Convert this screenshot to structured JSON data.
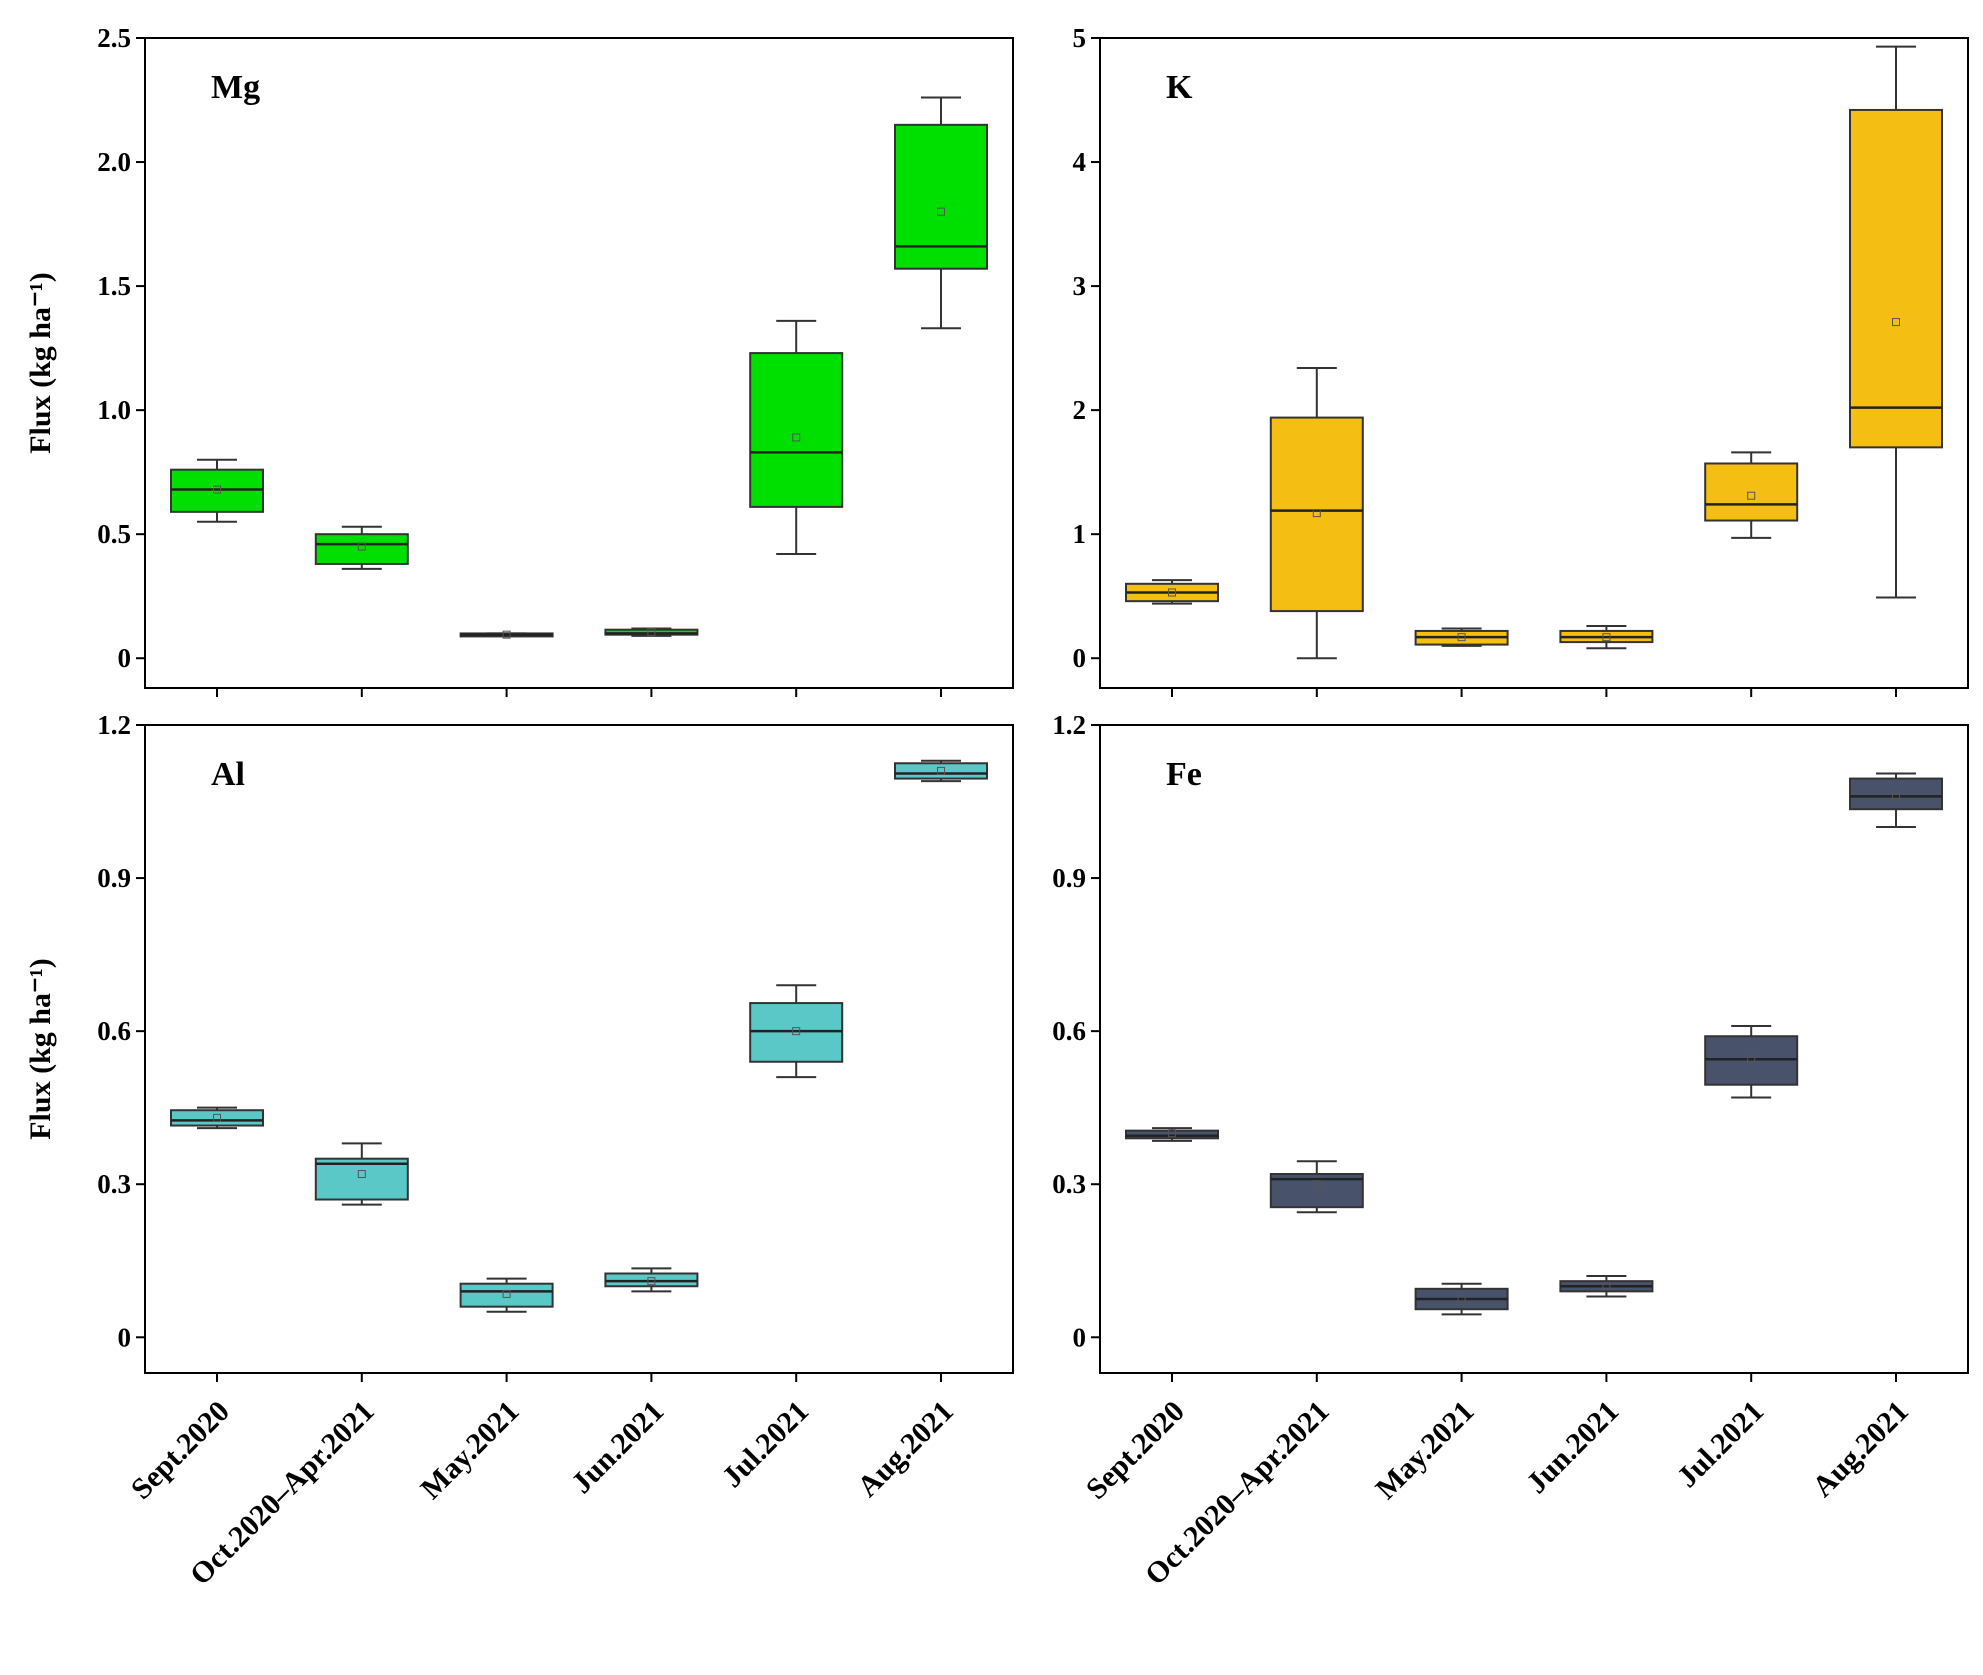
{
  "chart_data": [
    {
      "type": "box",
      "label": "Mg",
      "color": "#00e000",
      "ylabel": "Flux (kg ha⁻¹)",
      "ylim": [
        -0.12,
        2.5
      ],
      "yticks": [
        0,
        0.5,
        1.0,
        1.5,
        2.0,
        2.5
      ],
      "ytick_labels": [
        "0",
        "0.5",
        "1.0",
        "1.5",
        "2.0",
        "2.5"
      ],
      "categories": [
        "Sept.2020",
        "Oct.2020–Apr.2021",
        "May.2021",
        "Jun.2021",
        "Jul.2021",
        "Aug.2021"
      ],
      "boxes": [
        {
          "min": 0.55,
          "q1": 0.59,
          "median": 0.68,
          "q3": 0.76,
          "max": 0.8,
          "mean": 0.68
        },
        {
          "min": 0.36,
          "q1": 0.38,
          "median": 0.46,
          "q3": 0.5,
          "max": 0.53,
          "mean": 0.45
        },
        {
          "min": 0.09,
          "q1": 0.09,
          "median": 0.095,
          "q3": 0.1,
          "max": 0.1,
          "mean": 0.095
        },
        {
          "min": 0.09,
          "q1": 0.095,
          "median": 0.1,
          "q3": 0.115,
          "max": 0.12,
          "mean": 0.105
        },
        {
          "min": 0.42,
          "q1": 0.61,
          "median": 0.83,
          "q3": 1.23,
          "max": 1.36,
          "mean": 0.89
        },
        {
          "min": 1.33,
          "q1": 1.57,
          "median": 1.66,
          "q3": 2.15,
          "max": 2.26,
          "mean": 1.8
        }
      ]
    },
    {
      "type": "box",
      "label": "K",
      "color": "#f5be12",
      "ylabel": "",
      "ylim": [
        -0.24,
        5
      ],
      "yticks": [
        0,
        1,
        2,
        3,
        4,
        5
      ],
      "ytick_labels": [
        "0",
        "1",
        "2",
        "3",
        "4",
        "5"
      ],
      "categories": [
        "Sept.2020",
        "Oct.2020–Apr.2021",
        "May.2021",
        "Jun.2021",
        "Jul.2021",
        "Aug.2021"
      ],
      "boxes": [
        {
          "min": 0.44,
          "q1": 0.46,
          "median": 0.53,
          "q3": 0.6,
          "max": 0.63,
          "mean": 0.53
        },
        {
          "min": 0.0,
          "q1": 0.38,
          "median": 1.19,
          "q3": 1.94,
          "max": 2.34,
          "mean": 1.17
        },
        {
          "min": 0.1,
          "q1": 0.11,
          "median": 0.17,
          "q3": 0.22,
          "max": 0.24,
          "mean": 0.17
        },
        {
          "min": 0.08,
          "q1": 0.13,
          "median": 0.17,
          "q3": 0.22,
          "max": 0.26,
          "mean": 0.17
        },
        {
          "min": 0.97,
          "q1": 1.11,
          "median": 1.24,
          "q3": 1.57,
          "max": 1.66,
          "mean": 1.31
        },
        {
          "min": 0.49,
          "q1": 1.7,
          "median": 2.02,
          "q3": 4.42,
          "max": 4.93,
          "mean": 2.71
        }
      ]
    },
    {
      "type": "box",
      "label": "Al",
      "color": "#5bc8c8",
      "ylabel": "Flux (kg ha⁻¹)",
      "ylim": [
        -0.07,
        1.2
      ],
      "yticks": [
        0,
        0.3,
        0.6,
        0.9,
        1.2
      ],
      "ytick_labels": [
        "0",
        "0.3",
        "0.6",
        "0.9",
        "1.2"
      ],
      "categories": [
        "Sept.2020",
        "Oct.2020–Apr.2021",
        "May.2021",
        "Jun.2021",
        "Jul.2021",
        "Aug.2021"
      ],
      "boxes": [
        {
          "min": 0.41,
          "q1": 0.415,
          "median": 0.425,
          "q3": 0.445,
          "max": 0.45,
          "mean": 0.43
        },
        {
          "min": 0.26,
          "q1": 0.27,
          "median": 0.34,
          "q3": 0.35,
          "max": 0.38,
          "mean": 0.32
        },
        {
          "min": 0.05,
          "q1": 0.06,
          "median": 0.09,
          "q3": 0.105,
          "max": 0.115,
          "mean": 0.085
        },
        {
          "min": 0.09,
          "q1": 0.1,
          "median": 0.11,
          "q3": 0.125,
          "max": 0.135,
          "mean": 0.11
        },
        {
          "min": 0.51,
          "q1": 0.54,
          "median": 0.6,
          "q3": 0.655,
          "max": 0.69,
          "mean": 0.6
        },
        {
          "min": 1.09,
          "q1": 1.095,
          "median": 1.105,
          "q3": 1.125,
          "max": 1.13,
          "mean": 1.11
        }
      ]
    },
    {
      "type": "box",
      "label": "Fe",
      "color": "#48526a",
      "ylabel": "",
      "ylim": [
        -0.07,
        1.2
      ],
      "yticks": [
        0,
        0.3,
        0.6,
        0.9,
        1.2
      ],
      "ytick_labels": [
        "0",
        "0.3",
        "0.6",
        "0.9",
        "1.2"
      ],
      "categories": [
        "Sept.2020",
        "Oct.2020–Apr.2021",
        "May.2021",
        "Jun.2021",
        "Jul.2021",
        "Aug.2021"
      ],
      "boxes": [
        {
          "min": 0.385,
          "q1": 0.39,
          "median": 0.395,
          "q3": 0.405,
          "max": 0.41,
          "mean": 0.4
        },
        {
          "min": 0.245,
          "q1": 0.255,
          "median": 0.31,
          "q3": 0.32,
          "max": 0.345,
          "mean": 0.3
        },
        {
          "min": 0.045,
          "q1": 0.055,
          "median": 0.075,
          "q3": 0.095,
          "max": 0.105,
          "mean": 0.075
        },
        {
          "min": 0.08,
          "q1": 0.09,
          "median": 0.1,
          "q3": 0.11,
          "max": 0.12,
          "mean": 0.1
        },
        {
          "min": 0.47,
          "q1": 0.495,
          "median": 0.545,
          "q3": 0.59,
          "max": 0.61,
          "mean": 0.545
        },
        {
          "min": 1.0,
          "q1": 1.035,
          "median": 1.06,
          "q3": 1.095,
          "max": 1.105,
          "mean": 1.06
        }
      ]
    }
  ]
}
